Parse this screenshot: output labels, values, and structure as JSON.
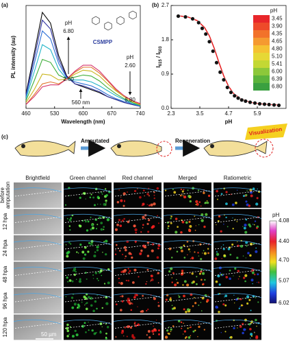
{
  "chart_data": [
    {
      "type": "line",
      "panel": "(a)",
      "x_label": "Wavelength (nm)",
      "y_label": "PL intensity (au)",
      "x": [
        460,
        480,
        500,
        520,
        540,
        560,
        580,
        600,
        620,
        640,
        660,
        680,
        700,
        720,
        740
      ],
      "xlim": [
        460,
        740
      ],
      "xticks": [
        460,
        530,
        600,
        670,
        740
      ],
      "ylim": [
        0,
        105
      ],
      "series": [
        {
          "color": "#000000",
          "values": [
            15,
            56,
            98,
            87,
            54,
            33,
            25,
            22,
            19,
            16,
            12,
            9,
            6,
            4,
            2
          ]
        },
        {
          "color": "#2b2f9e",
          "values": [
            14,
            51,
            90,
            81,
            50,
            32,
            25,
            23,
            20,
            17,
            12,
            9,
            6,
            4,
            2
          ]
        },
        {
          "color": "#2c6fd6",
          "values": [
            12,
            45,
            79,
            71,
            46,
            31,
            27,
            25,
            23,
            19,
            14,
            10,
            7,
            5,
            2
          ]
        },
        {
          "color": "#22b5c8",
          "values": [
            10,
            37,
            65,
            60,
            40,
            30,
            29,
            29,
            27,
            23,
            18,
            13,
            9,
            5,
            3
          ]
        },
        {
          "color": "#3fae3a",
          "values": [
            8,
            28,
            50,
            47,
            34,
            30,
            32,
            34,
            33,
            28,
            21,
            15,
            10,
            6,
            3
          ]
        },
        {
          "color": "#c9b51e",
          "values": [
            6,
            19,
            35,
            34,
            29,
            30,
            35,
            39,
            38,
            33,
            25,
            18,
            12,
            7,
            4
          ]
        },
        {
          "color": "#e0762a",
          "values": [
            4,
            14,
            25,
            27,
            25,
            30,
            37,
            42,
            42,
            36,
            28,
            19,
            13,
            8,
            4
          ]
        },
        {
          "color": "#d6336c",
          "values": [
            4,
            12,
            22,
            24,
            24,
            30,
            38,
            44,
            44,
            38,
            29,
            20,
            13,
            8,
            5
          ]
        }
      ],
      "annotations": [
        "pH",
        "6.80",
        "2.60",
        "pH",
        "2.60",
        "6.80",
        "560 nm",
        "CSMPP"
      ]
    },
    {
      "type": "scatter",
      "panel": "(b)",
      "x_label": "pH",
      "y_label_parts": [
        "I",
        "615",
        " / I",
        "503"
      ],
      "x": [
        2.6,
        2.9,
        3.2,
        3.45,
        3.6,
        3.75,
        3.9,
        4.05,
        4.2,
        4.35,
        4.5,
        4.65,
        4.8,
        4.95,
        5.1,
        5.25,
        5.41,
        5.6,
        5.8,
        6.0,
        6.2,
        6.39,
        6.6,
        6.8
      ],
      "values": [
        2.42,
        2.4,
        2.35,
        2.25,
        2.1,
        1.95,
        1.75,
        1.5,
        1.2,
        0.95,
        0.75,
        0.55,
        0.42,
        0.33,
        0.27,
        0.22,
        0.19,
        0.16,
        0.14,
        0.12,
        0.11,
        0.1,
        0.09,
        0.08
      ],
      "color": "#111111",
      "fit": {
        "color": "#e41a1c",
        "x": [
          2.6,
          3.0,
          3.4,
          3.7,
          3.9,
          4.1,
          4.3,
          4.5,
          4.7,
          4.9,
          5.2,
          5.6,
          6.0,
          6.4,
          6.8
        ],
        "values": [
          2.43,
          2.4,
          2.3,
          2.12,
          1.9,
          1.58,
          1.2,
          0.85,
          0.58,
          0.4,
          0.25,
          0.16,
          0.12,
          0.1,
          0.09
        ]
      },
      "xlim": [
        2.3,
        7.1
      ],
      "xticks": [
        2.3,
        3.5,
        4.7,
        5.9
      ],
      "ylim": [
        0,
        2.7
      ],
      "yticks": [
        {
          "value": 0,
          "label": "0.0"
        },
        0.9,
        1.8,
        2.7
      ],
      "legend": {
        "corner": "top-right",
        "title": "pH",
        "items": [
          {
            "label": "3.45",
            "color": "#e8262a"
          },
          {
            "label": "3.90",
            "color": "#ee4a2a"
          },
          {
            "label": "4.35",
            "color": "#f2722a"
          },
          {
            "label": "4.65",
            "color": "#f59a30"
          },
          {
            "label": "4.80",
            "color": "#f5c232"
          },
          {
            "label": "5.10",
            "color": "#e6d835"
          },
          {
            "label": "5.41",
            "color": "#c3d834"
          },
          {
            "label": "6.00",
            "color": "#8cc83a"
          },
          {
            "label": "6.39",
            "color": "#5bb43c"
          },
          {
            "label": "6.80",
            "color": "#3aa040"
          }
        ]
      }
    }
  ],
  "panel_c": {
    "panel": "(c)",
    "steps": [
      "Amputated",
      "Regeneration",
      "Visualization"
    ],
    "columns": [
      "Brightfield",
      "Green channel",
      "Red channel",
      "Merged",
      "Ratiometric"
    ],
    "rows": [
      [
        "before",
        "amputation"
      ],
      [
        "12 hpa"
      ],
      [
        "24 hpa"
      ],
      [
        "48 hpa"
      ],
      [
        "96 hpa"
      ],
      [
        "120 hpa"
      ]
    ],
    "scale_bar": "50 µm",
    "colorbar": {
      "title": "pH",
      "ticks": [
        "4.08",
        "4.40",
        "4.70",
        "5.07",
        "6.02"
      ]
    }
  }
}
